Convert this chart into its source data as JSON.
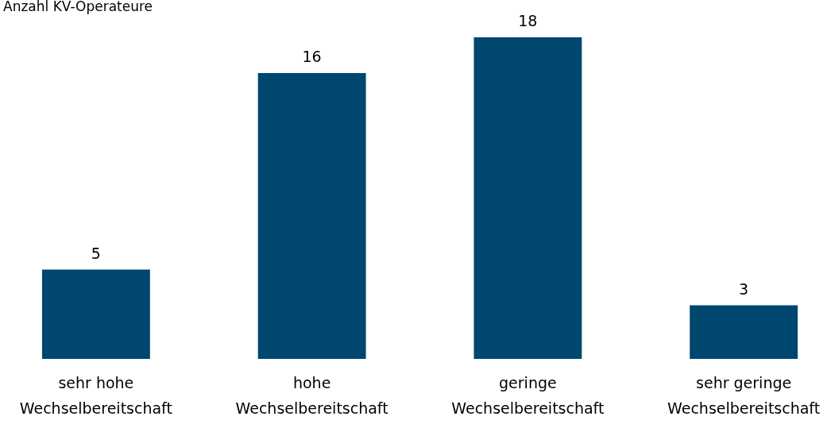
{
  "chart_data": {
    "type": "bar",
    "ylabel": "Anzahl KV-Operateure",
    "categories": [
      "sehr hohe Wechselbereitschaft",
      "hohe Wechselbereitschaft",
      "geringe Wechselbereitschaft",
      "sehr geringe Wechselbereitschaft"
    ],
    "values": [
      5,
      16,
      18,
      3
    ],
    "color": "#00476f",
    "data_labels": true
  }
}
